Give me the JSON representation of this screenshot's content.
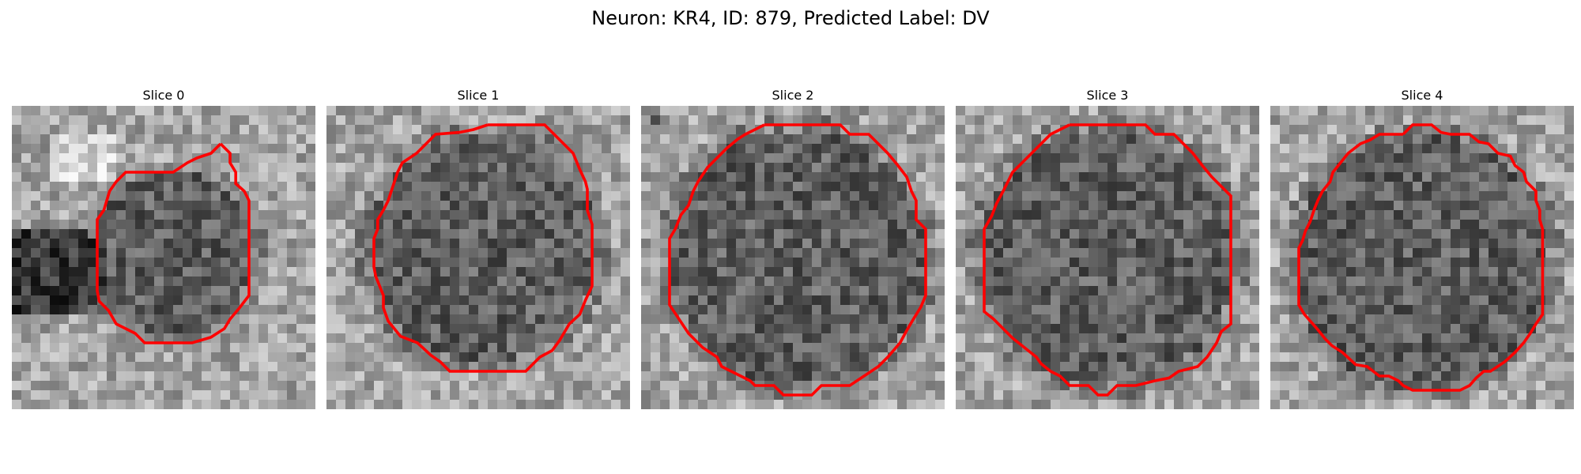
{
  "figure": {
    "title": "Neuron: KR4, ID: 879, Predicted Label: DV",
    "contour_color": "#ff0000",
    "colormap": "gray"
  },
  "panels": [
    {
      "title": "Slice 0"
    },
    {
      "title": "Slice 1"
    },
    {
      "title": "Slice 2"
    },
    {
      "title": "Slice 3"
    },
    {
      "title": "Slice 4"
    }
  ]
}
